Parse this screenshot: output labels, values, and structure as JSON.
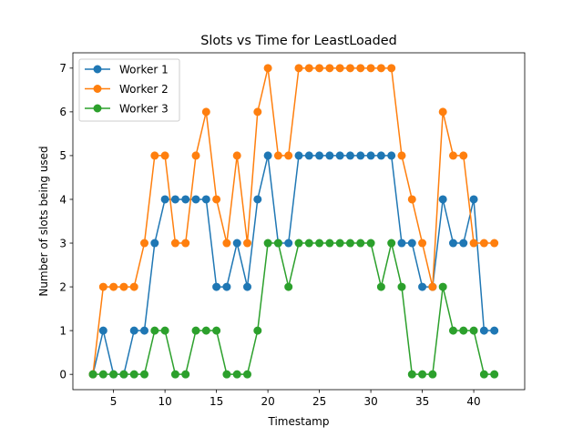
{
  "chart_data": {
    "type": "line",
    "title": "Slots vs Time for LeastLoaded",
    "xlabel": "Timestamp",
    "ylabel": "Number of slots being used",
    "xlim": [
      1.05,
      44.95
    ],
    "ylim": [
      -0.35,
      7.35
    ],
    "xticks": [
      5,
      10,
      15,
      20,
      25,
      30,
      35,
      40
    ],
    "yticks": [
      0,
      1,
      2,
      3,
      4,
      5,
      6,
      7
    ],
    "grid": false,
    "legend_position": "upper-left",
    "x": [
      3,
      4,
      5,
      6,
      7,
      8,
      9,
      10,
      11,
      12,
      13,
      14,
      15,
      16,
      17,
      18,
      19,
      20,
      21,
      22,
      23,
      24,
      25,
      26,
      27,
      28,
      29,
      30,
      31,
      32,
      33,
      34,
      35,
      36,
      37,
      38,
      39,
      40,
      41,
      42
    ],
    "series": [
      {
        "name": "Worker 1",
        "color": "#1f77b4",
        "values": [
          0,
          1,
          0,
          0,
          1,
          1,
          3,
          4,
          4,
          4,
          4,
          4,
          2,
          2,
          3,
          2,
          4,
          5,
          3,
          3,
          5,
          5,
          5,
          5,
          5,
          5,
          5,
          5,
          5,
          5,
          3,
          3,
          2,
          2,
          4,
          3,
          3,
          4,
          1,
          1
        ]
      },
      {
        "name": "Worker 2",
        "color": "#ff7f0e",
        "values": [
          0,
          2,
          2,
          2,
          2,
          3,
          5,
          5,
          3,
          3,
          5,
          6,
          4,
          3,
          5,
          3,
          6,
          7,
          5,
          5,
          7,
          7,
          7,
          7,
          7,
          7,
          7,
          7,
          7,
          7,
          5,
          4,
          3,
          2,
          6,
          5,
          5,
          3,
          3,
          3
        ]
      },
      {
        "name": "Worker 3",
        "color": "#2ca02c",
        "values": [
          0,
          0,
          0,
          0,
          0,
          0,
          1,
          1,
          0,
          0,
          1,
          1,
          1,
          0,
          0,
          0,
          1,
          3,
          3,
          2,
          3,
          3,
          3,
          3,
          3,
          3,
          3,
          3,
          2,
          3,
          2,
          0,
          0,
          0,
          2,
          1,
          1,
          1,
          0,
          0
        ]
      }
    ]
  }
}
